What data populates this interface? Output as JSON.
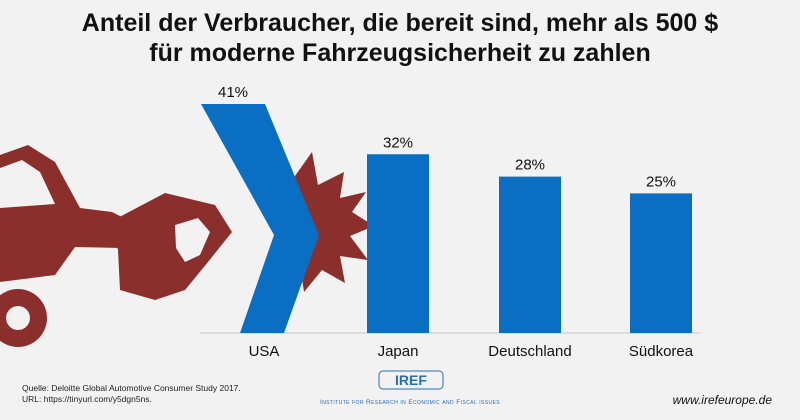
{
  "title_line1": "Anteil der Verbraucher, die bereit sind, mehr als 500 $",
  "title_line2": "für moderne Fahrzeugsicherheit zu zahlen",
  "chart_data": {
    "type": "bar",
    "categories": [
      "USA",
      "Japan",
      "Deutschland",
      "Südkorea"
    ],
    "values": [
      41,
      32,
      28,
      25
    ],
    "value_labels": [
      "41%",
      "32%",
      "28%",
      "25%"
    ],
    "ylim": [
      0,
      41
    ],
    "bar_color": "#0a6fc2",
    "car_color": "#8b2f2d",
    "grid": false
  },
  "source_line1": "Quelle:  Deloitte Global Automotive Consumer Study 2017.",
  "source_line2": "URL: https://tinyurl.com/y5dgn5ns.",
  "logo_text": "IREF",
  "institute_name": "Institute for Research in Economic and Fiscal issues",
  "website": "www.irefeurope.de"
}
